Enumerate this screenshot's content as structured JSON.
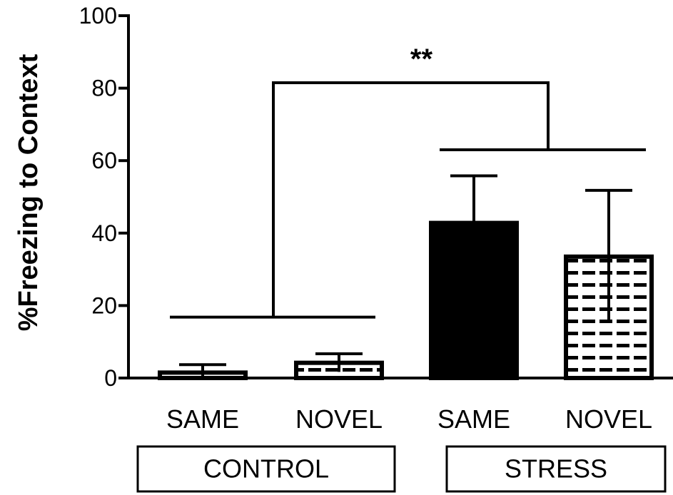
{
  "chart_data": {
    "type": "bar",
    "ylabel": "%Freezing to Context",
    "ylim": [
      0,
      100
    ],
    "yticks": [
      0,
      20,
      40,
      60,
      80,
      100
    ],
    "categories": [
      "SAME",
      "NOVEL",
      "SAME",
      "NOVEL"
    ],
    "groups": [
      {
        "label": "CONTROL",
        "categories": [
          0,
          1
        ]
      },
      {
        "label": "STRESS",
        "categories": [
          2,
          3
        ]
      }
    ],
    "values": [
      1.5,
      4.2,
      42.8,
      33.5
    ],
    "errors": [
      2.2,
      2.5,
      13.0,
      18.3
    ],
    "bar_fills": [
      "hatched",
      "hatched",
      "solid",
      "hatched"
    ],
    "colors": {
      "bar": "#000000",
      "hatch_bg": "#ffffff"
    },
    "annotations": [
      {
        "text": "**",
        "between_groups": [
          "CONTROL",
          "STRESS"
        ],
        "bracket_y": 81.5,
        "control_line_y": 16.8,
        "stress_line_y": 63.0
      }
    ]
  }
}
